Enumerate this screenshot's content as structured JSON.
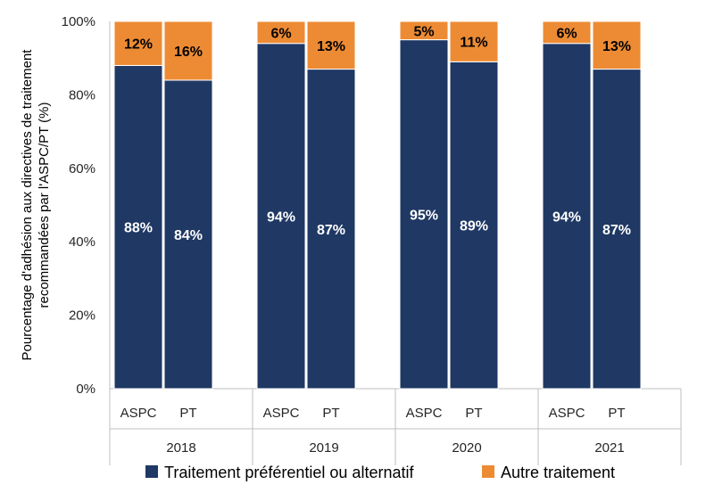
{
  "chart_data": {
    "type": "bar",
    "stacked": true,
    "percent_stacked": true,
    "ylabel": "Pourcentage d'adhésion aux directives de traitement recommandées par l'ASPC/PT (%)",
    "ylabel_lines": [
      "Pourcentage d'adhésion aux directives de traitement",
      "recommandées par l'ASPC/PT (%)"
    ],
    "ylim": [
      0,
      100
    ],
    "yticks": [
      0,
      20,
      40,
      60,
      80,
      100
    ],
    "ytick_labels": [
      "0%",
      "20%",
      "40%",
      "60%",
      "80%",
      "100%"
    ],
    "grid": false,
    "legend_position": "bottom",
    "groups": [
      {
        "label": "2018",
        "categories": [
          "ASPC",
          "PT"
        ]
      },
      {
        "label": "2019",
        "categories": [
          "ASPC",
          "PT"
        ]
      },
      {
        "label": "2020",
        "categories": [
          "ASPC",
          "PT"
        ]
      },
      {
        "label": "2021",
        "categories": [
          "ASPC",
          "PT"
        ]
      }
    ],
    "categories": [
      "ASPC",
      "PT",
      "ASPC",
      "PT",
      "ASPC",
      "PT",
      "ASPC",
      "PT"
    ],
    "series": [
      {
        "name": "Traitement préférentiel ou alternatif",
        "color": "#1F3864",
        "label_color": "#ffffff",
        "values": [
          88,
          84,
          94,
          87,
          95,
          89,
          94,
          87
        ],
        "labels": [
          "88%",
          "84%",
          "94%",
          "87%",
          "95%",
          "89%",
          "94%",
          "87%"
        ]
      },
      {
        "name": "Autre traitement",
        "color": "#ED8B34",
        "label_color": "#000000",
        "values": [
          12,
          16,
          6,
          13,
          5,
          11,
          6,
          13
        ],
        "labels": [
          "12%",
          "16%",
          "6%",
          "13%",
          "5%",
          "11%",
          "6%",
          "13%"
        ]
      }
    ]
  }
}
